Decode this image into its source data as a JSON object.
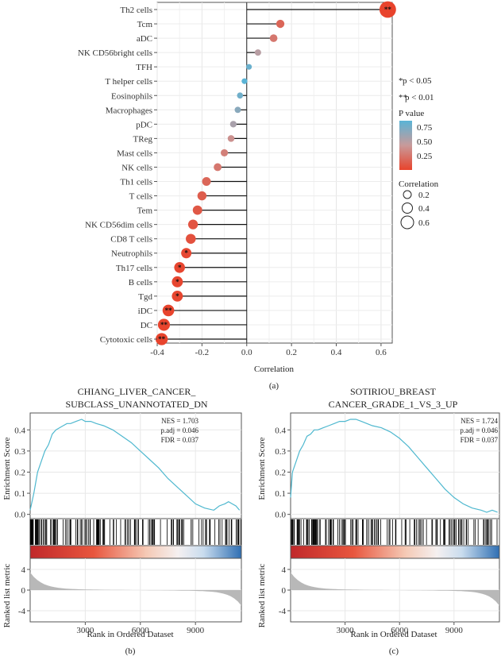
{
  "chart_data": [
    {
      "type": "lollipop",
      "panel_label": "(a)",
      "xlabel": "Correlation",
      "xlim": [
        -0.4,
        0.65
      ],
      "xticks": [
        -0.4,
        -0.2,
        0.0,
        0.2,
        0.4,
        0.6
      ],
      "xtick_labels": [
        "-0.4",
        "-0.2",
        "0.0",
        "0.2",
        "0.4",
        "0.6"
      ],
      "categories": [
        "Th2 cells",
        "Tcm",
        "aDC",
        "NK CD56bright cells",
        "TFH",
        "T helper cells",
        "Eosinophils",
        "Macrophages",
        "pDC",
        "TReg",
        "Mast cells",
        "NK cells",
        "Th1 cells",
        "T cells",
        "Tem",
        "NK CD56dim cells",
        "CD8 T cells",
        "Neutrophils",
        "Th17 cells",
        "B cells",
        "Tgd",
        "iDC",
        "DC",
        "Cytotoxic cells"
      ],
      "values": [
        0.63,
        0.15,
        0.12,
        0.05,
        0.01,
        -0.01,
        -0.03,
        -0.04,
        -0.06,
        -0.07,
        -0.1,
        -0.13,
        -0.18,
        -0.2,
        -0.22,
        -0.24,
        -0.25,
        -0.27,
        -0.3,
        -0.31,
        -0.31,
        -0.35,
        -0.37,
        -0.38
      ],
      "pvalues": [
        0.001,
        0.2,
        0.3,
        0.55,
        0.8,
        0.85,
        0.78,
        0.7,
        0.6,
        0.45,
        0.35,
        0.3,
        0.2,
        0.15,
        0.12,
        0.1,
        0.08,
        0.03,
        0.02,
        0.02,
        0.02,
        0.005,
        0.004,
        0.003
      ],
      "significance": [
        "**",
        "",
        "",
        "",
        "",
        "",
        "",
        "",
        "",
        "",
        "",
        "",
        "",
        "",
        "",
        "",
        "",
        "*",
        "*",
        "*",
        "*",
        "**",
        "**",
        "**"
      ],
      "legend": {
        "sig1": "p < 0.05",
        "sig2": "p < 0.01",
        "color_title": "P value",
        "color_ticks": [
          "0.75",
          "0.50",
          "0.25"
        ],
        "size_title": "Correlation",
        "size_ticks": [
          "0.2",
          "0.4",
          "0.6"
        ]
      }
    },
    {
      "type": "line",
      "panel_label": "(b)",
      "title_lines": [
        "CHIANG_LIVER_CANCER_",
        "SUBCLASS_UNANNOTATED_DN"
      ],
      "stats": [
        "NES = 1.703",
        "p.adj = 0.046",
        "FDR = 0.037"
      ],
      "ylabel": "Enrichment Score",
      "yticks": [
        0.0,
        0.1,
        0.2,
        0.3,
        0.4
      ],
      "ylim": [
        -0.02,
        0.48
      ],
      "xlim": [
        0,
        11500
      ],
      "x": [
        0,
        100,
        200,
        400,
        600,
        800,
        1000,
        1200,
        1400,
        1600,
        1800,
        2000,
        2200,
        2500,
        2800,
        3000,
        3300,
        3600,
        4000,
        4500,
        5000,
        5500,
        6000,
        6500,
        7000,
        7500,
        8000,
        8500,
        9000,
        9500,
        10000,
        10300,
        10600,
        10800,
        11000,
        11200,
        11400
      ],
      "y": [
        0.02,
        0.06,
        0.1,
        0.2,
        0.25,
        0.3,
        0.33,
        0.38,
        0.4,
        0.41,
        0.42,
        0.43,
        0.43,
        0.44,
        0.45,
        0.44,
        0.44,
        0.43,
        0.42,
        0.4,
        0.37,
        0.34,
        0.3,
        0.26,
        0.22,
        0.17,
        0.13,
        0.09,
        0.05,
        0.03,
        0.02,
        0.04,
        0.05,
        0.06,
        0.05,
        0.04,
        0.02
      ],
      "hit_density": "dense-left",
      "ranked_ylabel": "Ranked list metric",
      "ranked_yticks": [
        "4",
        "0",
        "-4"
      ],
      "xlabel": "Rank in Ordered Dataset",
      "xticks": [
        3000,
        6000,
        9000
      ],
      "xtick_labels": [
        "3000",
        "6000",
        "9000"
      ]
    },
    {
      "type": "line",
      "panel_label": "(c)",
      "title_lines": [
        "SOTIRIOU_BREAST",
        "CANCER_GRADE_1_VS_3_UP"
      ],
      "stats": [
        "NES = 1.724",
        "p.adj = 0.046",
        "FDR = 0.037"
      ],
      "ylabel": "Enrichment Score",
      "yticks": [
        0.0,
        0.1,
        0.2,
        0.3,
        0.4
      ],
      "ylim": [
        -0.02,
        0.48
      ],
      "xlim": [
        0,
        11500
      ],
      "x": [
        0,
        100,
        300,
        500,
        700,
        900,
        1100,
        1300,
        1500,
        1800,
        2100,
        2400,
        2700,
        3000,
        3300,
        3600,
        3900,
        4200,
        4500,
        5000,
        5500,
        6000,
        6500,
        7000,
        7500,
        8000,
        8500,
        9000,
        9500,
        10000,
        10500,
        10800,
        11100,
        11400
      ],
      "y": [
        0.08,
        0.2,
        0.25,
        0.3,
        0.33,
        0.37,
        0.38,
        0.4,
        0.4,
        0.41,
        0.42,
        0.43,
        0.44,
        0.44,
        0.45,
        0.45,
        0.44,
        0.43,
        0.42,
        0.41,
        0.39,
        0.36,
        0.32,
        0.27,
        0.22,
        0.17,
        0.12,
        0.08,
        0.05,
        0.03,
        0.02,
        0.01,
        0.02,
        0.01
      ],
      "hit_density": "dense-left",
      "ranked_ylabel": "Ranked list metric",
      "ranked_yticks": [
        "4",
        "0",
        "-4"
      ],
      "xlabel": "Rank in Ordered Dataset",
      "xticks": [
        3000,
        6000,
        9000
      ],
      "xtick_labels": [
        "3000",
        "6000",
        "9000"
      ]
    }
  ]
}
